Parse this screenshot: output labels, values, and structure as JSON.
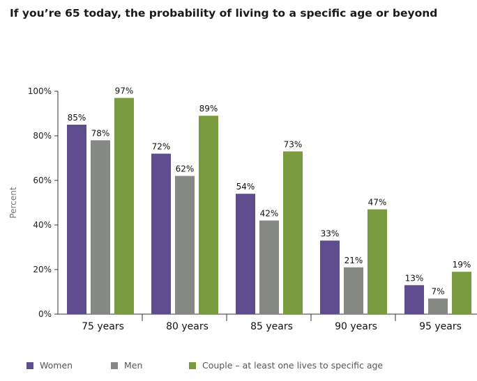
{
  "chart_data": {
    "type": "bar",
    "title": "If you’re 65 today, the probability of living to a specific age or beyond",
    "ylabel": "Percent",
    "xlabel": "",
    "ylim": [
      0,
      100
    ],
    "yticks": [
      0,
      20,
      40,
      60,
      80,
      100
    ],
    "ytick_labels": [
      "0%",
      "20%",
      "40%",
      "60%",
      "80%",
      "100%"
    ],
    "categories": [
      "75 years",
      "80 years",
      "85 years",
      "90 years",
      "95 years"
    ],
    "series": [
      {
        "name": "Women",
        "color": "#5e4d8f",
        "values": [
          85,
          72,
          54,
          33,
          13
        ],
        "labels": [
          "85%",
          "72%",
          "54%",
          "33%",
          "13%"
        ]
      },
      {
        "name": "Men",
        "color": "#858883",
        "values": [
          78,
          62,
          42,
          21,
          7
        ],
        "labels": [
          "78%",
          "62%",
          "42%",
          "21%",
          "7%"
        ]
      },
      {
        "name": "Couple – at least one lives to specific age",
        "color": "#7a9a3e",
        "values": [
          97,
          89,
          73,
          47,
          19
        ],
        "labels": [
          "97%",
          "89%",
          "73%",
          "47%",
          "19%"
        ]
      }
    ],
    "grid": false,
    "legend_position": "bottom"
  }
}
